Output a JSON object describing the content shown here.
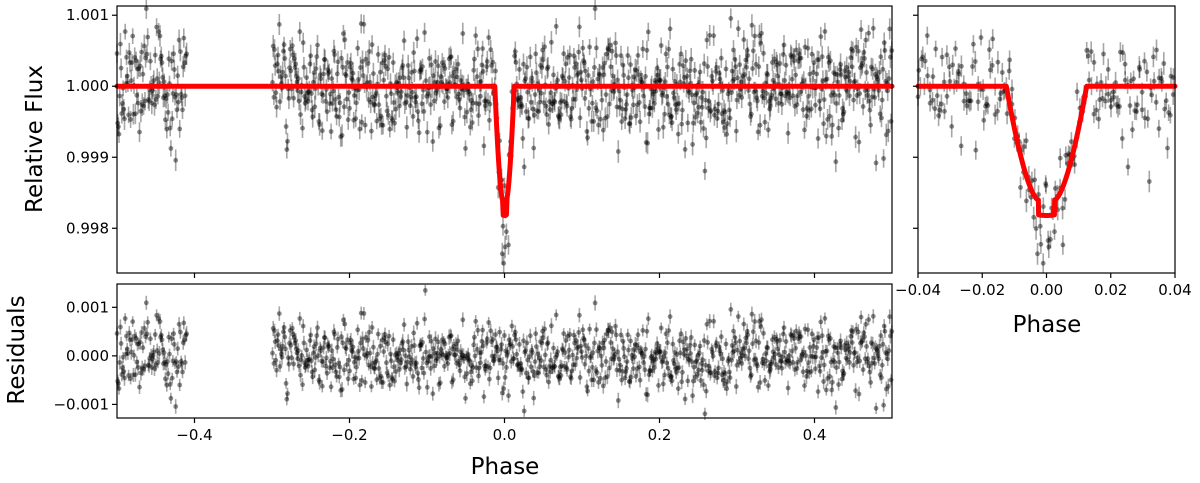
{
  "chart_data": [
    {
      "panel": "main",
      "type": "scatter",
      "ylabel": "Relative Flux",
      "xlim": [
        -0.5,
        0.5
      ],
      "ylim": [
        0.99737,
        1.00113
      ],
      "xticks": [
        -0.4,
        -0.2,
        0.0,
        0.2,
        0.4
      ],
      "yticks": [
        0.998,
        0.999,
        1.0,
        1.001
      ],
      "ytick_labels": [
        "0.998",
        "0.999",
        "1.000",
        "1.001"
      ],
      "data_gap": [
        -0.41,
        -0.3
      ],
      "scatter_sigma": 0.00037,
      "transit": {
        "center": 0.0,
        "depth": 0.00182,
        "half_width": 0.0125,
        "ingress": 0.01
      },
      "series": [
        {
          "kind": "points",
          "color": "#000000"
        },
        {
          "kind": "model",
          "color": "#ff0000"
        }
      ]
    },
    {
      "panel": "zoom",
      "type": "scatter",
      "xlabel": "Phase",
      "xlim": [
        -0.04,
        0.04
      ],
      "ylim": [
        0.99737,
        1.00113
      ],
      "xticks": [
        -0.04,
        -0.02,
        0.0,
        0.02,
        0.04
      ],
      "xtick_labels": [
        "−0.04",
        "−0.02",
        "0.00",
        "0.02",
        "0.04"
      ],
      "yticks": [
        0.998,
        0.999,
        1.0,
        1.001
      ],
      "series": [
        {
          "kind": "points",
          "color": "#000000"
        },
        {
          "kind": "model",
          "color": "#ff0000"
        }
      ]
    },
    {
      "panel": "residuals",
      "type": "scatter",
      "xlabel": "Phase",
      "ylabel": "Residuals",
      "xlim": [
        -0.5,
        0.5
      ],
      "ylim": [
        -0.00128,
        0.00148
      ],
      "xticks": [
        -0.4,
        -0.2,
        0.0,
        0.2,
        0.4
      ],
      "xtick_labels": [
        "−0.4",
        "−0.2",
        "0.0",
        "0.2",
        "0.4"
      ],
      "yticks": [
        -0.001,
        0.0,
        0.001
      ],
      "ytick_labels": [
        "−0.001",
        "0.000",
        "0.001"
      ],
      "series": [
        {
          "kind": "points",
          "color": "#000000"
        }
      ]
    }
  ]
}
